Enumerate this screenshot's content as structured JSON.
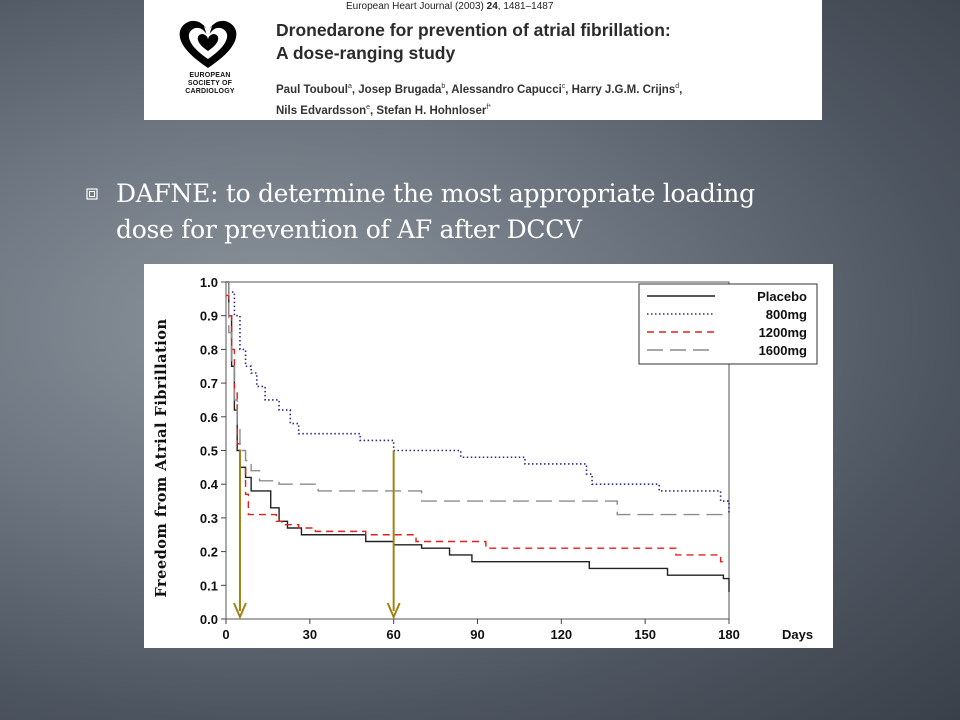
{
  "header": {
    "journal": "European Heart Journal (2003)",
    "volume": "24",
    "pages": ", 1481–1487",
    "title_line1": "Dronedarone for prevention of atrial fibrillation:",
    "title_line2": "A dose-ranging study",
    "authors_line1_parts": [
      "Paul Touboul",
      "a",
      ", Josep Brugada",
      "b",
      ", Alessandro Capucci",
      "c",
      ", Harry J.G.M. Crijns",
      "d",
      ","
    ],
    "authors_line2_parts": [
      "Nils Edvardsson",
      "e",
      ", Stefan H. Hohnloser",
      "f*"
    ],
    "logo_text_lines": [
      "EUROPEAN",
      "SOCIETY OF",
      "CARDIOLOGY"
    ]
  },
  "bullet": {
    "icon": "square-bullet-icon",
    "text_line1": "DAFNE:  to determine the most appropriate loading",
    "text_line2": "dose for prevention of AF after DCCV"
  },
  "colors": {
    "arrow": "#a08214",
    "placebo": "#222222",
    "800mg": "#2a2a8c",
    "1200mg": "#e0201e",
    "1600mg": "#8c8c8c"
  },
  "chart_data": {
    "type": "line",
    "ylabel": "Freedom from Atrial Fibrillation",
    "xlabel": "Days",
    "xlim": [
      0,
      180
    ],
    "ylim": [
      0,
      1.0
    ],
    "x_ticks": [
      0,
      30,
      60,
      90,
      120,
      150,
      180
    ],
    "y_ticks": [
      "0.0",
      "0.1",
      "0.2",
      "0.3",
      "0.4",
      "0.5",
      "0.6",
      "0.7",
      "0.8",
      "0.9",
      "1.0"
    ],
    "legend_position": "top-right",
    "arrows_at_days": [
      5,
      60
    ],
    "series": [
      {
        "name": "Placebo",
        "style": "solid",
        "points": [
          [
            0,
            1.0
          ],
          [
            1,
            0.9
          ],
          [
            2,
            0.75
          ],
          [
            3,
            0.62
          ],
          [
            4,
            0.5
          ],
          [
            5,
            0.45
          ],
          [
            7,
            0.42
          ],
          [
            9,
            0.38
          ],
          [
            16,
            0.33
          ],
          [
            19,
            0.29
          ],
          [
            22,
            0.27
          ],
          [
            27,
            0.25
          ],
          [
            50,
            0.23
          ],
          [
            60,
            0.22
          ],
          [
            70,
            0.21
          ],
          [
            80,
            0.19
          ],
          [
            88,
            0.17
          ],
          [
            130,
            0.15
          ],
          [
            158,
            0.13
          ],
          [
            178,
            0.12
          ],
          [
            180,
            0.08
          ]
        ]
      },
      {
        "name": "800mg",
        "style": "dotted",
        "points": [
          [
            0,
            1.0
          ],
          [
            1,
            0.97
          ],
          [
            3,
            0.9
          ],
          [
            5,
            0.8
          ],
          [
            7,
            0.75
          ],
          [
            9,
            0.73
          ],
          [
            11,
            0.69
          ],
          [
            14,
            0.65
          ],
          [
            19,
            0.62
          ],
          [
            23,
            0.58
          ],
          [
            26,
            0.55
          ],
          [
            48,
            0.53
          ],
          [
            60,
            0.5
          ],
          [
            84,
            0.48
          ],
          [
            107,
            0.46
          ],
          [
            129,
            0.43
          ],
          [
            131,
            0.4
          ],
          [
            155,
            0.38
          ],
          [
            177,
            0.35
          ],
          [
            180,
            0.31
          ]
        ]
      },
      {
        "name": "1200mg",
        "style": "dashed",
        "points": [
          [
            0,
            0.96
          ],
          [
            1,
            0.9
          ],
          [
            2,
            0.8
          ],
          [
            3,
            0.68
          ],
          [
            4,
            0.52
          ],
          [
            5,
            0.45
          ],
          [
            7,
            0.37
          ],
          [
            8,
            0.31
          ],
          [
            18,
            0.29
          ],
          [
            20,
            0.28
          ],
          [
            26,
            0.27
          ],
          [
            32,
            0.26
          ],
          [
            50,
            0.25
          ],
          [
            68,
            0.23
          ],
          [
            93,
            0.21
          ],
          [
            161,
            0.19
          ],
          [
            177,
            0.17
          ],
          [
            178,
            0.16
          ]
        ]
      },
      {
        "name": "1600mg",
        "style": "long-dash",
        "points": [
          [
            0,
            1.0
          ],
          [
            1,
            0.85
          ],
          [
            2,
            0.75
          ],
          [
            3,
            0.65
          ],
          [
            4,
            0.57
          ],
          [
            5,
            0.5
          ],
          [
            7,
            0.47
          ],
          [
            9,
            0.44
          ],
          [
            12,
            0.41
          ],
          [
            19,
            0.4
          ],
          [
            33,
            0.38
          ],
          [
            70,
            0.35
          ],
          [
            129,
            0.35
          ],
          [
            140,
            0.31
          ],
          [
            180,
            0.31
          ]
        ]
      }
    ]
  }
}
